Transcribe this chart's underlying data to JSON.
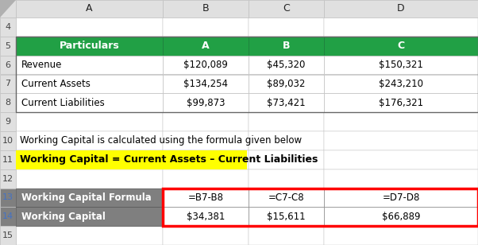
{
  "col_letters": [
    "A",
    "B",
    "C",
    "D"
  ],
  "header_row_bg": "#21a045",
  "header_row_text": "#ffffff",
  "header_labels": [
    "Particulars",
    "A",
    "B",
    "C"
  ],
  "data_rows": [
    {
      "label": "Revenue",
      "A": "$120,089",
      "B": "$45,320",
      "C": "$150,321"
    },
    {
      "label": "Current Assets",
      "A": "$134,254",
      "B": "$89,032",
      "C": "$243,210"
    },
    {
      "label": "Current Liabilities",
      "A": "$99,873",
      "B": "$73,421",
      "C": "$176,321"
    }
  ],
  "formula_text": "Working Capital is calculated using the formula given below",
  "formula_highlight": "Working Capital = Current Assets – Current Liabilities",
  "formula_highlight_bg": "#ffff00",
  "bottom_label1": "Working Capital Formula",
  "bottom_label2": "Working Capital",
  "bottom_gray_bg": "#7f7f7f",
  "bottom_gray_text": "#ffffff",
  "bottom_formulas": [
    "=B7-B8",
    "=C7-C8",
    "=D7-D8"
  ],
  "bottom_values": [
    "$34,381",
    "$15,611",
    "$66,889"
  ],
  "red_border": "#ff0000",
  "header_col_bg": "#e0e0e0",
  "cell_bg": "#ffffff",
  "grid_color": "#c0c0c0",
  "outer_bg": "#e8e8e8",
  "row_num_color": "#4472c4",
  "row_num_bg": "#e0e0e0"
}
